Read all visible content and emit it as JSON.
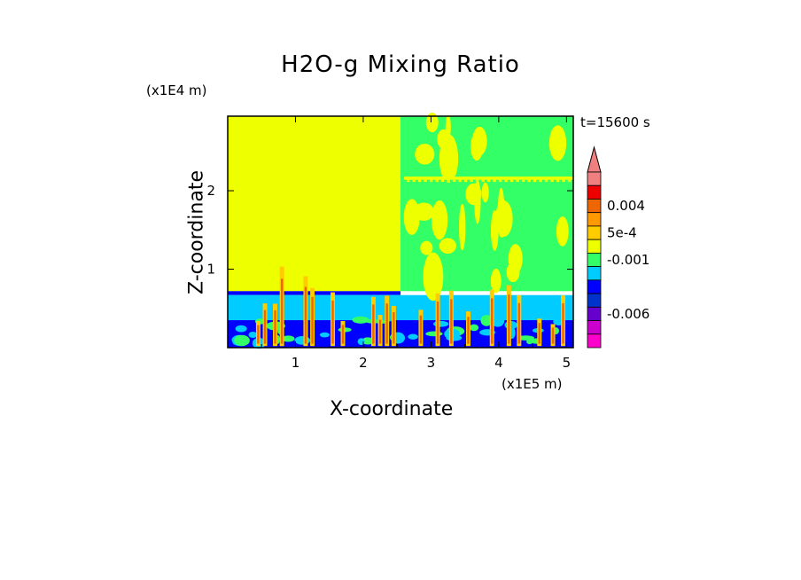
{
  "chart_data": {
    "type": "heatmap",
    "title": "H2O-g Mixing Ratio",
    "xlabel": "X-coordinate",
    "ylabel": "Z-coordinate",
    "x_unit": "(x1E5 m)",
    "z_unit": "(x1E4 m)",
    "time_label": "t=15600 s",
    "xlim": [
      0,
      5.1
    ],
    "zlim": [
      0,
      2.95
    ],
    "x_ticks": [
      "1",
      "2",
      "3",
      "4",
      "5"
    ],
    "x_tick_values": [
      1,
      2,
      3,
      4,
      5
    ],
    "z_ticks": [
      "1",
      "2"
    ],
    "z_tick_values": [
      1,
      2
    ],
    "colorbar": {
      "labels": [
        "0.004",
        "5e-4",
        "-0.001",
        "-0.006"
      ],
      "levels_top_to_bottom": [
        {
          "color": "#f08080"
        },
        {
          "color": "#ee0000"
        },
        {
          "color": "#ee6600"
        },
        {
          "color": "#ff9900"
        },
        {
          "color": "#ffcc00"
        },
        {
          "color": "#eeff00"
        },
        {
          "color": "#33ff66"
        },
        {
          "color": "#00ccff"
        },
        {
          "color": "#0000ff"
        },
        {
          "color": "#0033cc"
        },
        {
          "color": "#6600cc"
        },
        {
          "color": "#cc00cc"
        },
        {
          "color": "#ff00cc"
        }
      ]
    },
    "regions": [
      {
        "name": "upper-left",
        "x": [
          0,
          2.55
        ],
        "z": [
          0.72,
          2.95
        ],
        "color": "#eeff00"
      },
      {
        "name": "upper-right",
        "x": [
          2.55,
          5.1
        ],
        "z": [
          0.72,
          2.95
        ],
        "color": "#33ff66"
      },
      {
        "name": "boundary-band",
        "x": [
          0,
          2.55
        ],
        "z": [
          0.67,
          0.72
        ],
        "color": "#0000ff"
      },
      {
        "name": "lower-layer",
        "x": [
          0,
          5.1
        ],
        "z": [
          0.35,
          0.67
        ],
        "color": "#00ccff"
      },
      {
        "name": "surface-layer",
        "x": [
          0,
          5.1
        ],
        "z": [
          0,
          0.35
        ],
        "color": "#0000ff"
      }
    ]
  }
}
